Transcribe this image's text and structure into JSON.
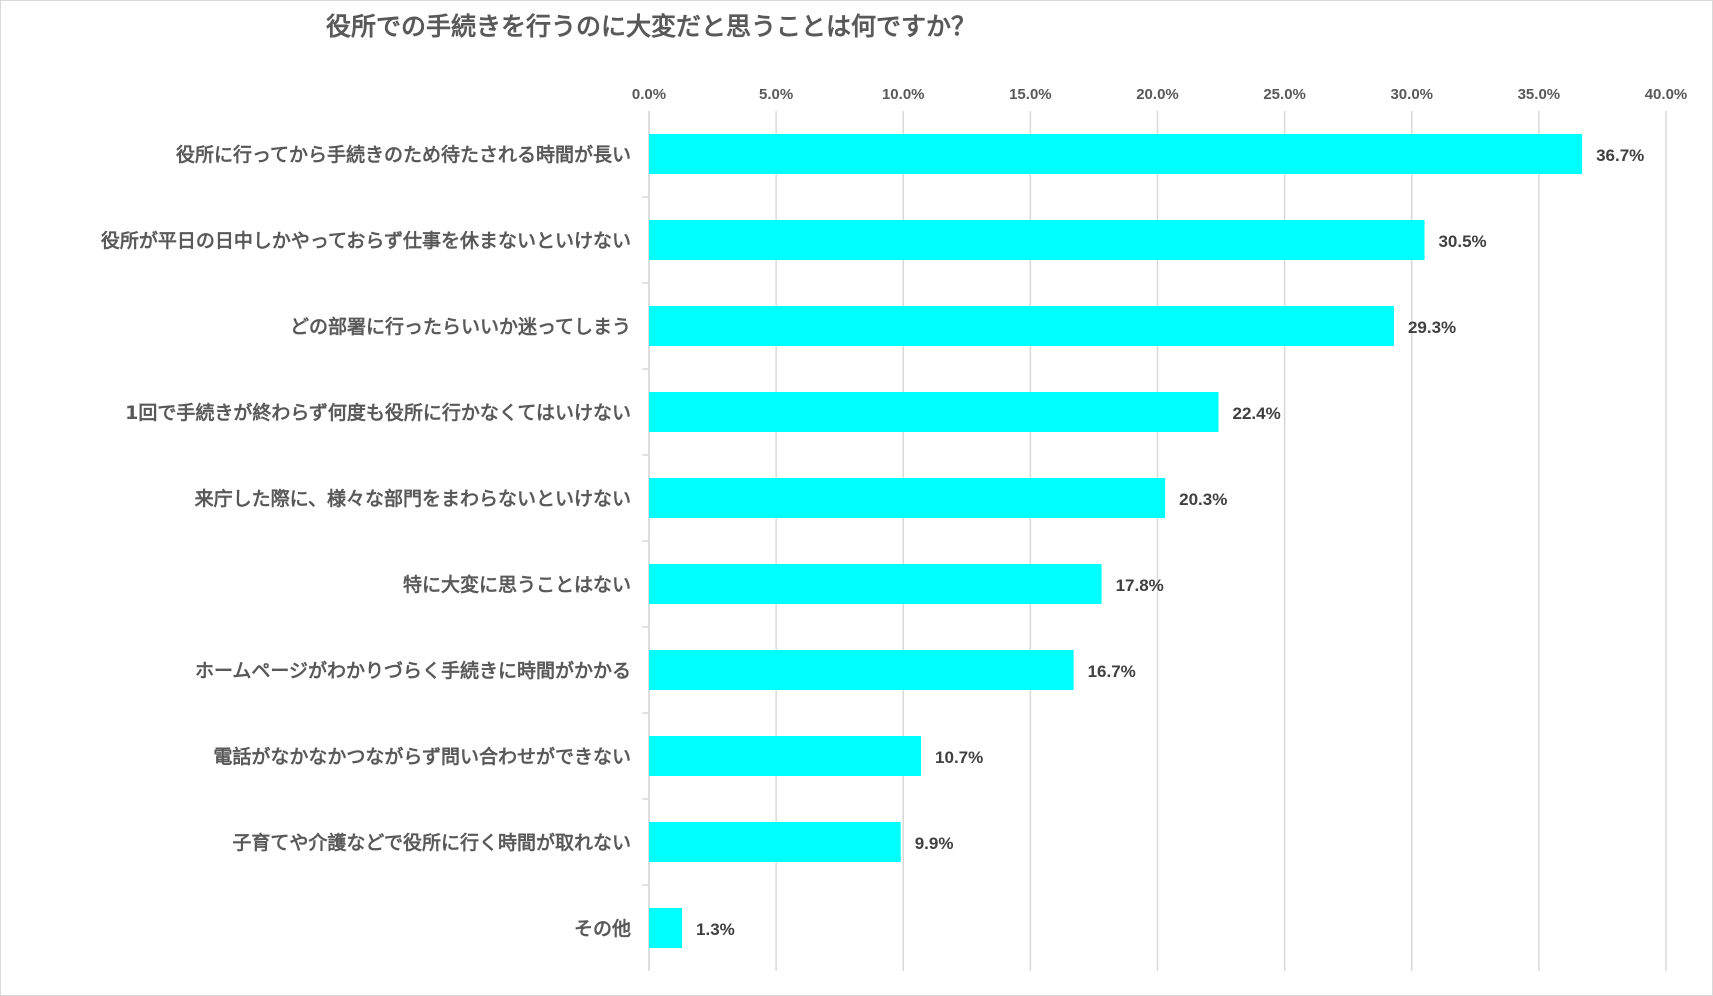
{
  "chart_data": {
    "type": "bar",
    "orientation": "horizontal",
    "title": "役所での手続きを行うのに大変だと思うことは何ですか？",
    "categories": [
      "役所に行ってから手続きのため待たされる時間が長い",
      "役所が平日の日中しかやっておらず仕事を休まないといけない",
      "どの部署に行ったらいいか迷ってしまう",
      "1回で手続きが終わらず何度も役所に行かなくてはいけない",
      "来庁した際に、様々な部門をまわらないといけない",
      "特に大変に思うことはない",
      "ホームページがわかりづらく手続きに時間がかかる",
      "電話がなかなかつながらず問い合わせができない",
      "子育てや介護などで役所に行く時間が取れない",
      "その他"
    ],
    "values": [
      36.7,
      30.5,
      29.3,
      22.4,
      20.3,
      17.8,
      16.7,
      10.7,
      9.9,
      1.3
    ],
    "data_labels": [
      "36.7%",
      "30.5%",
      "29.3%",
      "22.4%",
      "20.3%",
      "17.8%",
      "16.7%",
      "10.7%",
      "9.9%",
      "1.3%"
    ],
    "xlim": [
      0,
      40
    ],
    "xticks": [
      0,
      5,
      10,
      15,
      20,
      25,
      30,
      35,
      40
    ],
    "xtick_labels": [
      "0.0%",
      "5.0%",
      "10.0%",
      "15.0%",
      "20.0%",
      "25.0%",
      "30.0%",
      "35.0%",
      "40.0%"
    ],
    "x_axis_position": "top",
    "grid": true,
    "bar_color": "#00FFFF",
    "grid_color": "#d9d9d9"
  }
}
